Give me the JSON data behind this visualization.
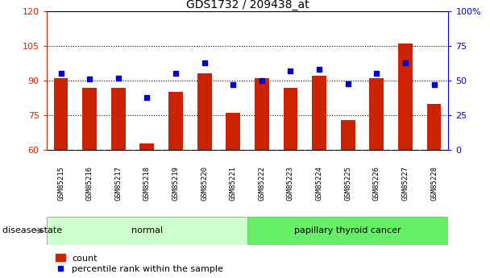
{
  "title": "GDS1732 / 209438_at",
  "samples": [
    "GSM85215",
    "GSM85216",
    "GSM85217",
    "GSM85218",
    "GSM85219",
    "GSM85220",
    "GSM85221",
    "GSM85222",
    "GSM85223",
    "GSM85224",
    "GSM85225",
    "GSM85226",
    "GSM85227",
    "GSM85228"
  ],
  "count_values": [
    91,
    87,
    87,
    63,
    85,
    93,
    76,
    91,
    87,
    92,
    73,
    91,
    106,
    80
  ],
  "percentile_values": [
    55,
    51,
    52,
    38,
    55,
    63,
    47,
    50,
    57,
    58,
    48,
    55,
    63,
    47
  ],
  "ylim_left": [
    60,
    120
  ],
  "ylim_right": [
    0,
    100
  ],
  "yticks_left": [
    60,
    75,
    90,
    105,
    120
  ],
  "yticks_right": [
    0,
    25,
    50,
    75,
    100
  ],
  "groups": [
    {
      "label": "normal",
      "start": 0,
      "end": 7,
      "color": "#ccffcc"
    },
    {
      "label": "papillary thyroid cancer",
      "start": 7,
      "end": 14,
      "color": "#66ee66"
    }
  ],
  "bar_color": "#cc2200",
  "dot_color": "#0000cc",
  "tick_bg_color": "#c8c8c8",
  "legend_count_label": "count",
  "legend_percentile_label": "percentile rank within the sample",
  "disease_state_label": "disease state",
  "left_axis_color": "#cc2200",
  "right_axis_color": "#0000cc",
  "dotted_grid_vals": [
    75,
    90,
    105
  ]
}
